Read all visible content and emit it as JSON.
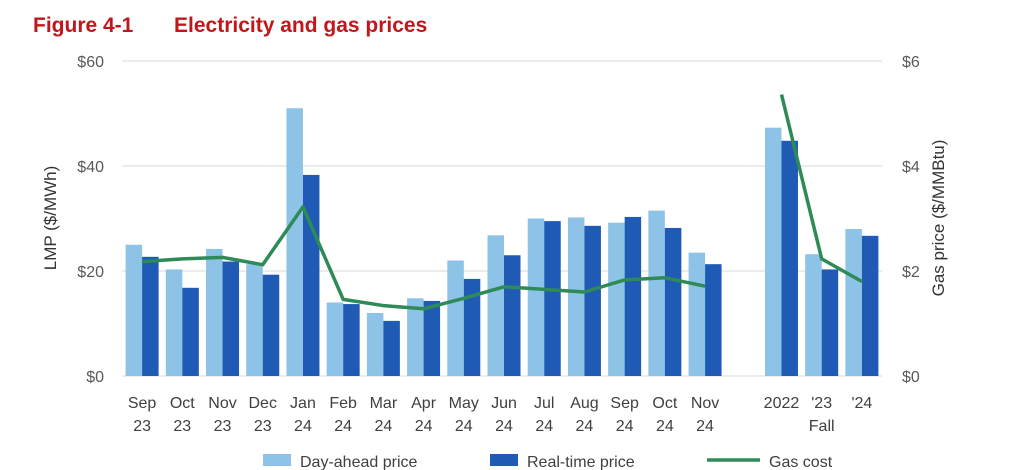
{
  "figure": {
    "label": "Figure 4-1",
    "title": "Electricity and gas prices"
  },
  "chart_data": {
    "type": "bar",
    "categories": [
      [
        "Sep",
        "23"
      ],
      [
        "Oct",
        "23"
      ],
      [
        "Nov",
        "23"
      ],
      [
        "Dec",
        "23"
      ],
      [
        "Jan",
        "24"
      ],
      [
        "Feb",
        "24"
      ],
      [
        "Mar",
        "24"
      ],
      [
        "Apr",
        "24"
      ],
      [
        "May",
        "24"
      ],
      [
        "Jun",
        "24"
      ],
      [
        "Jul",
        "24"
      ],
      [
        "Aug",
        "24"
      ],
      [
        "Sep",
        "24"
      ],
      [
        "Oct",
        "24"
      ],
      [
        "Nov",
        "24"
      ],
      [
        "2022"
      ],
      [
        "'23"
      ],
      [
        "'24"
      ]
    ],
    "group_label": "Fall",
    "ylabel": "LMP ($/MWh)",
    "y2label": "Gas price ($/MMBtu)",
    "ylim": [
      0,
      60
    ],
    "y2lim": [
      0,
      6
    ],
    "yticks": [
      "$0",
      "$20",
      "$40",
      "$60"
    ],
    "y2ticks": [
      "$0",
      "$2",
      "$4",
      "$6"
    ],
    "series": [
      {
        "name": "Day-ahead price",
        "type": "bar",
        "color": "#8dc3e7",
        "values": [
          25.0,
          20.3,
          24.2,
          21.3,
          51.0,
          14.0,
          12.0,
          14.8,
          22.0,
          26.8,
          30.0,
          30.2,
          29.2,
          31.5,
          23.5,
          47.3,
          23.2,
          28.0
        ]
      },
      {
        "name": "Real-time price",
        "type": "bar",
        "color": "#1f5bb5",
        "values": [
          22.7,
          16.8,
          21.8,
          19.3,
          38.3,
          13.7,
          10.5,
          14.3,
          18.5,
          23.0,
          29.5,
          28.6,
          30.3,
          28.2,
          21.3,
          44.8,
          20.3,
          26.7
        ]
      },
      {
        "name": "Gas cost",
        "type": "line",
        "color": "#2e8b57",
        "values": [
          2.18,
          2.23,
          2.26,
          2.12,
          3.22,
          1.46,
          1.34,
          1.28,
          1.48,
          1.7,
          1.65,
          1.6,
          1.83,
          1.87,
          1.71,
          5.36,
          2.23,
          1.8
        ]
      }
    ],
    "line_segments": [
      [
        0,
        14
      ],
      [
        15,
        17
      ]
    ],
    "grid": true,
    "legend_position": "bottom"
  }
}
